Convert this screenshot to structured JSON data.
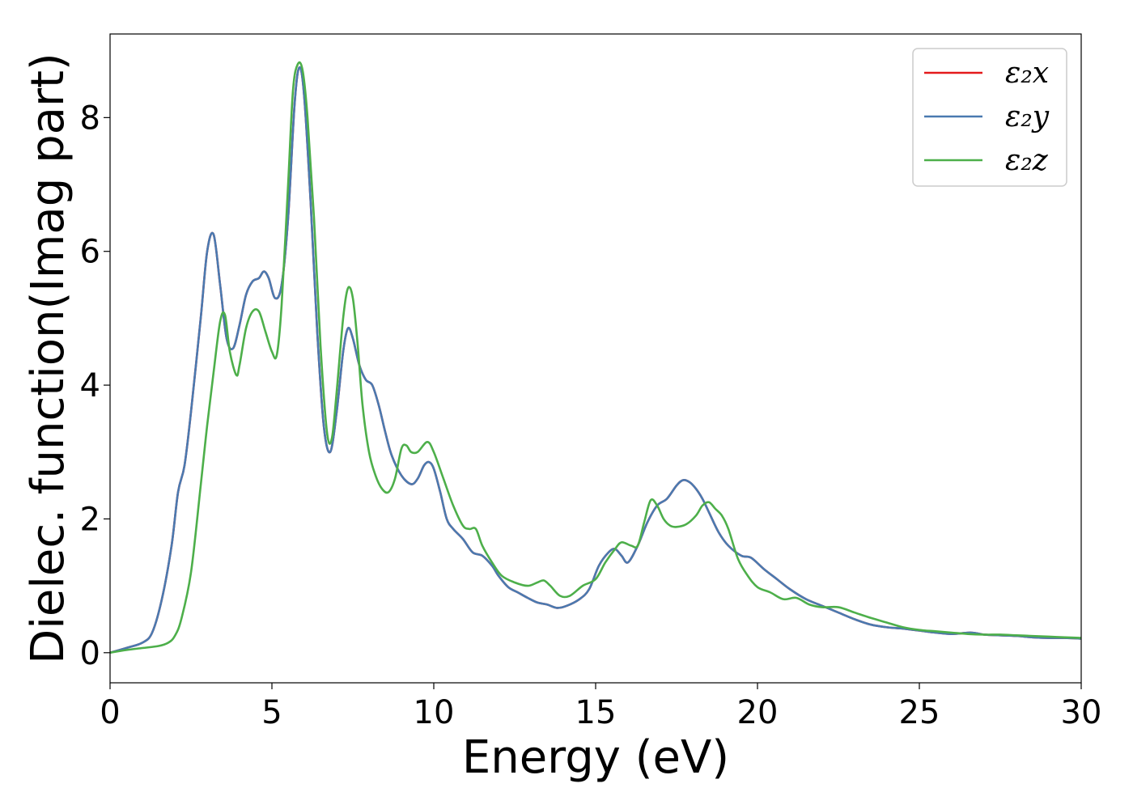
{
  "chart_data": {
    "type": "line",
    "title": "",
    "xlabel": "Energy (eV)",
    "ylabel": "Dielec. function(Imag part)",
    "xlim": [
      0,
      30
    ],
    "ylim": [
      -0.45,
      9.25
    ],
    "xticks": [
      0,
      5,
      10,
      15,
      20,
      25,
      30
    ],
    "xtick_labels": [
      "0",
      "5",
      "10",
      "15",
      "20",
      "25",
      "30"
    ],
    "yticks": [
      0,
      2,
      4,
      6,
      8
    ],
    "ytick_labels": [
      "0",
      "2",
      "4",
      "6",
      "8"
    ],
    "grid": false,
    "legend_position": "top-right",
    "series": [
      {
        "name": "ε₂x",
        "color": "#e41a1c",
        "x": [
          0,
          0.5,
          1,
          1.3,
          1.6,
          1.9,
          2.1,
          2.3,
          2.5,
          2.8,
          3.0,
          3.2,
          3.4,
          3.6,
          3.8,
          4.0,
          4.2,
          4.4,
          4.6,
          4.75,
          4.9,
          5.1,
          5.3,
          5.5,
          5.7,
          5.85,
          6.0,
          6.2,
          6.4,
          6.6,
          6.8,
          7.0,
          7.2,
          7.35,
          7.5,
          7.7,
          7.9,
          8.1,
          8.3,
          8.5,
          8.7,
          9.0,
          9.3,
          9.5,
          9.7,
          9.85,
          10.0,
          10.2,
          10.4,
          10.6,
          10.9,
          11.2,
          11.5,
          11.8,
          12.0,
          12.3,
          12.6,
          12.9,
          13.2,
          13.5,
          13.8,
          14.1,
          14.5,
          14.8,
          15.1,
          15.4,
          15.6,
          15.8,
          16.0,
          16.3,
          16.6,
          16.9,
          17.2,
          17.5,
          17.7,
          17.9,
          18.1,
          18.3,
          18.5,
          18.8,
          19.1,
          19.5,
          19.8,
          20.2,
          20.6,
          21.0,
          21.5,
          22.0,
          22.5,
          23.0,
          23.5,
          24.0,
          24.5,
          25.0,
          25.5,
          26.0,
          26.6,
          27.0,
          27.5,
          28.0,
          28.5,
          29.0,
          29.5,
          30.0
        ],
        "y": [
          0,
          0.07,
          0.15,
          0.3,
          0.8,
          1.6,
          2.4,
          2.8,
          3.6,
          5.0,
          6.0,
          6.25,
          5.5,
          4.7,
          4.55,
          4.9,
          5.35,
          5.55,
          5.6,
          5.7,
          5.6,
          5.3,
          5.5,
          6.5,
          8.2,
          8.75,
          8.3,
          6.7,
          4.8,
          3.4,
          3.0,
          3.6,
          4.5,
          4.85,
          4.7,
          4.3,
          4.08,
          4.0,
          3.7,
          3.3,
          2.95,
          2.65,
          2.52,
          2.6,
          2.8,
          2.85,
          2.75,
          2.4,
          2.0,
          1.85,
          1.7,
          1.5,
          1.45,
          1.3,
          1.15,
          0.98,
          0.9,
          0.82,
          0.75,
          0.72,
          0.67,
          0.7,
          0.8,
          0.95,
          1.3,
          1.5,
          1.55,
          1.45,
          1.35,
          1.6,
          1.95,
          2.2,
          2.3,
          2.5,
          2.58,
          2.55,
          2.45,
          2.3,
          2.1,
          1.8,
          1.6,
          1.45,
          1.42,
          1.25,
          1.1,
          0.95,
          0.8,
          0.7,
          0.6,
          0.5,
          0.42,
          0.38,
          0.36,
          0.33,
          0.3,
          0.28,
          0.3,
          0.27,
          0.26,
          0.25,
          0.23,
          0.22,
          0.22,
          0.21
        ]
      },
      {
        "name": "ε₂y",
        "color": "#4a7ab0",
        "x": [
          0,
          0.5,
          1,
          1.3,
          1.6,
          1.9,
          2.1,
          2.3,
          2.5,
          2.8,
          3.0,
          3.2,
          3.4,
          3.6,
          3.8,
          4.0,
          4.2,
          4.4,
          4.6,
          4.75,
          4.9,
          5.1,
          5.3,
          5.5,
          5.7,
          5.85,
          6.0,
          6.2,
          6.4,
          6.6,
          6.8,
          7.0,
          7.2,
          7.35,
          7.5,
          7.7,
          7.9,
          8.1,
          8.3,
          8.5,
          8.7,
          9.0,
          9.3,
          9.5,
          9.7,
          9.85,
          10.0,
          10.2,
          10.4,
          10.6,
          10.9,
          11.2,
          11.5,
          11.8,
          12.0,
          12.3,
          12.6,
          12.9,
          13.2,
          13.5,
          13.8,
          14.1,
          14.5,
          14.8,
          15.1,
          15.4,
          15.6,
          15.8,
          16.0,
          16.3,
          16.6,
          16.9,
          17.2,
          17.5,
          17.7,
          17.9,
          18.1,
          18.3,
          18.5,
          18.8,
          19.1,
          19.5,
          19.8,
          20.2,
          20.6,
          21.0,
          21.5,
          22.0,
          22.5,
          23.0,
          23.5,
          24.0,
          24.5,
          25.0,
          25.5,
          26.0,
          26.6,
          27.0,
          27.5,
          28.0,
          28.5,
          29.0,
          29.5,
          30.0
        ],
        "y": [
          0,
          0.07,
          0.15,
          0.3,
          0.8,
          1.6,
          2.4,
          2.8,
          3.6,
          5.0,
          6.0,
          6.25,
          5.5,
          4.7,
          4.55,
          4.9,
          5.35,
          5.55,
          5.6,
          5.7,
          5.6,
          5.3,
          5.5,
          6.5,
          8.2,
          8.75,
          8.3,
          6.7,
          4.8,
          3.4,
          3.0,
          3.6,
          4.5,
          4.85,
          4.7,
          4.3,
          4.08,
          4.0,
          3.7,
          3.3,
          2.95,
          2.65,
          2.52,
          2.6,
          2.8,
          2.85,
          2.75,
          2.4,
          2.0,
          1.85,
          1.7,
          1.5,
          1.45,
          1.3,
          1.15,
          0.98,
          0.9,
          0.82,
          0.75,
          0.72,
          0.67,
          0.7,
          0.8,
          0.95,
          1.3,
          1.5,
          1.55,
          1.45,
          1.35,
          1.6,
          1.95,
          2.2,
          2.3,
          2.5,
          2.58,
          2.55,
          2.45,
          2.3,
          2.1,
          1.8,
          1.6,
          1.45,
          1.42,
          1.25,
          1.1,
          0.95,
          0.8,
          0.7,
          0.6,
          0.5,
          0.42,
          0.38,
          0.36,
          0.33,
          0.3,
          0.28,
          0.3,
          0.27,
          0.26,
          0.25,
          0.23,
          0.22,
          0.22,
          0.21
        ]
      },
      {
        "name": "ε₂z",
        "color": "#4daf4a",
        "x": [
          0,
          0.5,
          1,
          1.5,
          1.8,
          2.0,
          2.2,
          2.5,
          2.8,
          3.0,
          3.2,
          3.4,
          3.55,
          3.7,
          3.9,
          4.0,
          4.2,
          4.4,
          4.6,
          4.8,
          5.0,
          5.15,
          5.3,
          5.5,
          5.65,
          5.8,
          5.95,
          6.1,
          6.3,
          6.5,
          6.7,
          6.85,
          7.0,
          7.2,
          7.35,
          7.5,
          7.65,
          7.8,
          8.0,
          8.2,
          8.4,
          8.6,
          8.8,
          9.0,
          9.15,
          9.3,
          9.5,
          9.8,
          10.0,
          10.3,
          10.6,
          10.9,
          11.1,
          11.3,
          11.5,
          11.8,
          12.1,
          12.5,
          12.9,
          13.2,
          13.4,
          13.6,
          13.9,
          14.2,
          14.6,
          15.0,
          15.3,
          15.6,
          15.8,
          16.1,
          16.3,
          16.5,
          16.7,
          16.9,
          17.1,
          17.3,
          17.5,
          17.8,
          18.1,
          18.3,
          18.5,
          18.7,
          18.9,
          19.1,
          19.4,
          19.7,
          20.0,
          20.4,
          20.8,
          21.2,
          21.6,
          22.0,
          22.5,
          23.0,
          23.5,
          24.0,
          24.5,
          25.0,
          25.5,
          26.0,
          26.5,
          27.0,
          27.5,
          28.0,
          28.5,
          29.0,
          29.5,
          30.0
        ],
        "y": [
          0,
          0.04,
          0.07,
          0.1,
          0.15,
          0.25,
          0.5,
          1.2,
          2.5,
          3.4,
          4.2,
          4.95,
          5.05,
          4.5,
          4.15,
          4.3,
          4.85,
          5.1,
          5.1,
          4.8,
          4.5,
          4.45,
          5.2,
          7.0,
          8.4,
          8.8,
          8.7,
          8.0,
          6.5,
          4.6,
          3.3,
          3.2,
          3.9,
          5.0,
          5.45,
          5.3,
          4.6,
          3.7,
          3.0,
          2.65,
          2.45,
          2.4,
          2.6,
          3.05,
          3.1,
          3.0,
          3.0,
          3.15,
          3.0,
          2.6,
          2.2,
          1.9,
          1.85,
          1.85,
          1.6,
          1.35,
          1.15,
          1.05,
          1.0,
          1.05,
          1.08,
          1.0,
          0.85,
          0.85,
          1.0,
          1.1,
          1.35,
          1.55,
          1.65,
          1.6,
          1.6,
          1.95,
          2.28,
          2.2,
          2.0,
          1.9,
          1.88,
          1.92,
          2.05,
          2.2,
          2.25,
          2.15,
          2.05,
          1.85,
          1.4,
          1.15,
          0.98,
          0.9,
          0.8,
          0.82,
          0.72,
          0.68,
          0.68,
          0.6,
          0.52,
          0.45,
          0.38,
          0.34,
          0.32,
          0.3,
          0.28,
          0.27,
          0.27,
          0.26,
          0.25,
          0.24,
          0.23,
          0.22
        ]
      }
    ]
  }
}
